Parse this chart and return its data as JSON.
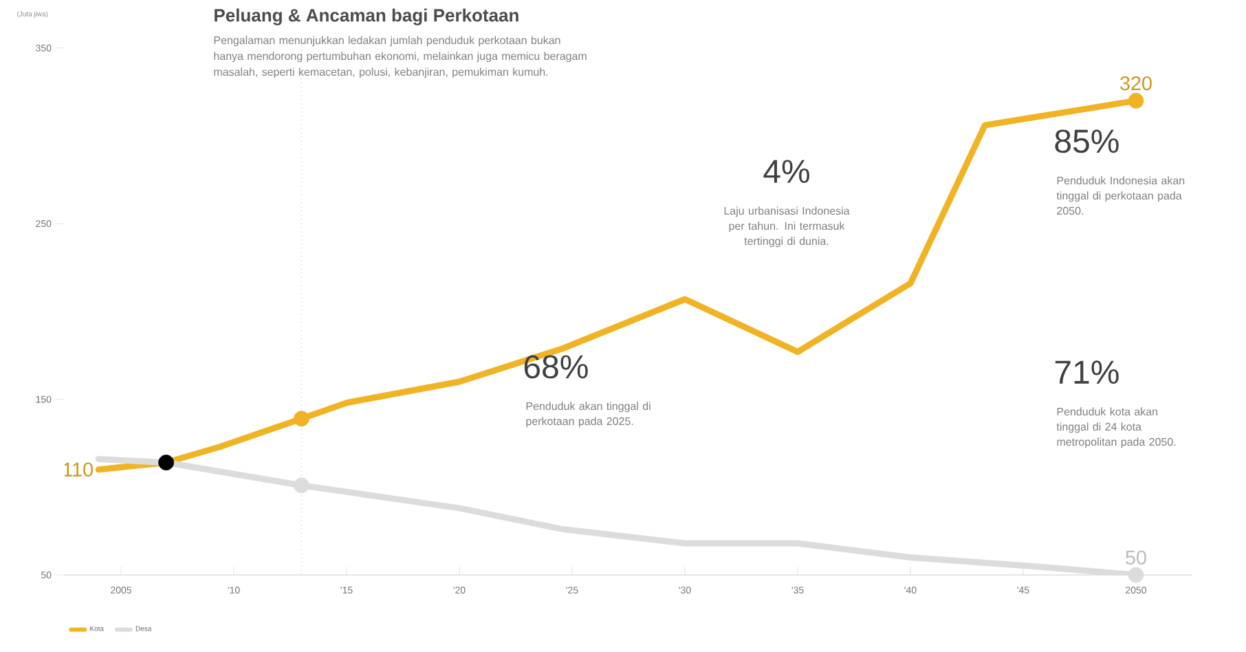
{
  "chart_data": {
    "type": "line",
    "title": "Peluang & Ancaman bagi Perkotaan",
    "subtitle": "Pengalaman menunjukkan ledakan jumlah penduduk perkotaan bukan hanya mendorong pertumbuhan ekonomi, melainkan juga memicu beragam masalah, seperti kemacetan, polusi, kebanjiran, pemukiman kumuh.",
    "ylabel": "(Juta jiwa)",
    "annotations": [
      "4%",
      "Laju urbanisasi Indonesia per tahun. Ini termasuk tertinggi di dunia.",
      "85%",
      "Penduduk Indonesia akan tinggal di perkotaan pada 2050.",
      "68%",
      "Penduduk akan tinggal di perkotaan pada 2025.",
      "71%",
      "Penduduk kota akan tinggal di 24 kota metropolitan pada 2050."
    ],
    "series": [
      {
        "name": "Kota",
        "color": "#f0b323",
        "x": [
          2004,
          2007,
          2009.4,
          2013,
          2015,
          2020,
          2024.6,
          2030,
          2035,
          2040,
          2043.3,
          2050
        ],
        "values": [
          110,
          114,
          123,
          139,
          148,
          160,
          179,
          207,
          177,
          216,
          306,
          320
        ],
        "value_labels": [
          "110",
          null,
          null,
          null,
          null,
          null,
          null,
          null,
          null,
          null,
          null,
          "320"
        ]
      },
      {
        "name": "Desa",
        "color": "#dcdcdc",
        "x": [
          2004,
          2007,
          2013,
          2020,
          2024.6,
          2030,
          2035,
          2040,
          2045.4,
          2050
        ],
        "values": [
          116,
          114,
          101,
          88,
          76,
          68,
          68,
          60,
          55,
          50
        ],
        "value_labels": [
          null,
          null,
          null,
          null,
          null,
          null,
          null,
          null,
          null,
          "50"
        ]
      },
      {
        "type": "scatter",
        "marker": "circle",
        "x": [
          2007,
          2013,
          2050,
          2013,
          2050
        ],
        "values": [
          114,
          139,
          320,
          101,
          50
        ],
        "colors": [
          "#000000",
          "#f0b323",
          "#f0b323",
          "#dcdcdc",
          "#dcdcdc"
        ]
      }
    ],
    "xlim": [
      2002.5,
      2052.5
    ],
    "xticks": [
      {
        "value": 2005,
        "label": "2005"
      },
      {
        "value": 2010,
        "label": "'10"
      },
      {
        "value": 2015,
        "label": "'15"
      },
      {
        "value": 2020,
        "label": "'20"
      },
      {
        "value": 2025,
        "label": "'25"
      },
      {
        "value": 2030,
        "label": "'30"
      },
      {
        "value": 2035,
        "label": "'35"
      },
      {
        "value": 2040,
        "label": "'40"
      },
      {
        "value": 2045,
        "label": "'45"
      },
      {
        "value": 2050,
        "label": "2050"
      }
    ],
    "ylim": [
      50,
      355
    ],
    "yticks": [
      50,
      150,
      250,
      350
    ],
    "ref_lines": [
      {
        "axis": "x",
        "value": 2013,
        "color": "#e6e6e6",
        "line_style": "dotted"
      }
    ],
    "legend": "bottom left",
    "marker": "none",
    "grid": false
  }
}
